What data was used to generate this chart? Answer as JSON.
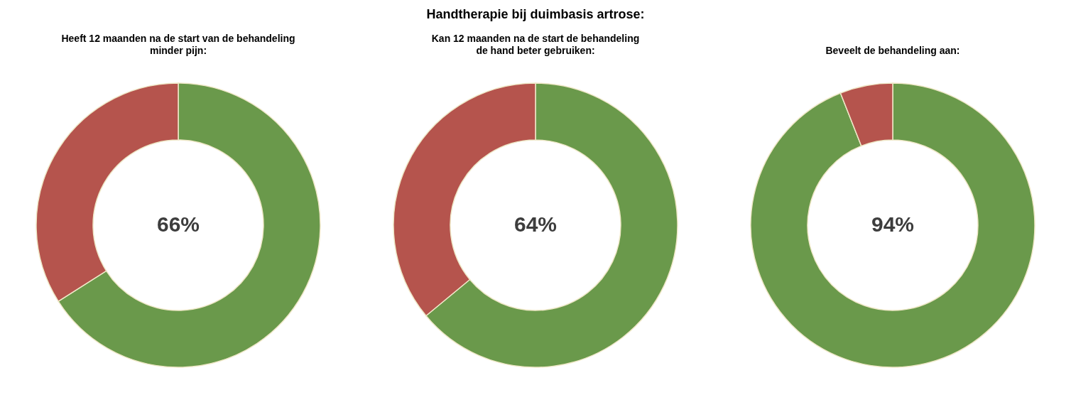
{
  "chart_data": [
    {
      "type": "donut",
      "subtitle": "Heeft 12 maanden na de start van de behandeling\nminder pijn:",
      "categories": [
        null,
        null
      ],
      "values": [
        66,
        34
      ],
      "colors": [
        "#6a994b",
        "#b5544d"
      ],
      "annotations": [
        "66%"
      ]
    },
    {
      "type": "donut",
      "title": "Handtherapie bij duimbasis artrose:",
      "subtitle": "Kan 12 maanden na de start de behandeling\nde hand beter gebruiken:",
      "categories": [
        null,
        null
      ],
      "values": [
        64,
        36
      ],
      "colors": [
        "#6a994b",
        "#b5544d"
      ],
      "annotations": [
        "64%"
      ]
    },
    {
      "type": "donut",
      "subtitle": "Beveelt de behandeling aan:",
      "categories": [
        null,
        null
      ],
      "values": [
        94,
        6
      ],
      "colors": [
        "#6a994b",
        "#b5544d"
      ],
      "annotations": [
        "94%"
      ]
    }
  ]
}
